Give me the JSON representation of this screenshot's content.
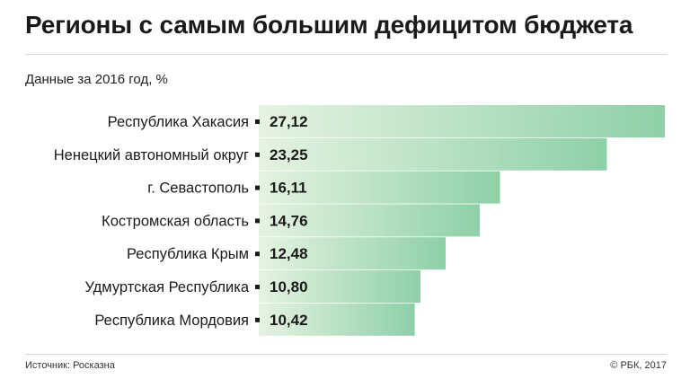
{
  "title": "Регионы с самым большим дефицитом бюджета",
  "subtitle": "Данные за 2016 год, %",
  "source": "Источник: Росказна",
  "copyright": "© РБК, 2017",
  "colors": {
    "bar_start": "#e6f3e2",
    "bar_end": "#8ed0a8",
    "text": "#1a1a1a"
  },
  "chart_data": {
    "type": "bar",
    "orientation": "horizontal",
    "categories": [
      "Республика Хакасия",
      "Ненецкий автономный округ",
      "г. Севастополь",
      "Костромская область",
      "Республика Крым",
      "Удмуртская Республика",
      "Республика Мордовия"
    ],
    "values": [
      27.12,
      23.25,
      16.11,
      14.76,
      12.48,
      10.8,
      10.42
    ],
    "value_labels": [
      "27,12",
      "23,25",
      "16,11",
      "14,76",
      "12,48",
      "10,80",
      "10,42"
    ],
    "xlim": [
      0,
      27.12
    ],
    "grid": false,
    "legend": "none"
  }
}
